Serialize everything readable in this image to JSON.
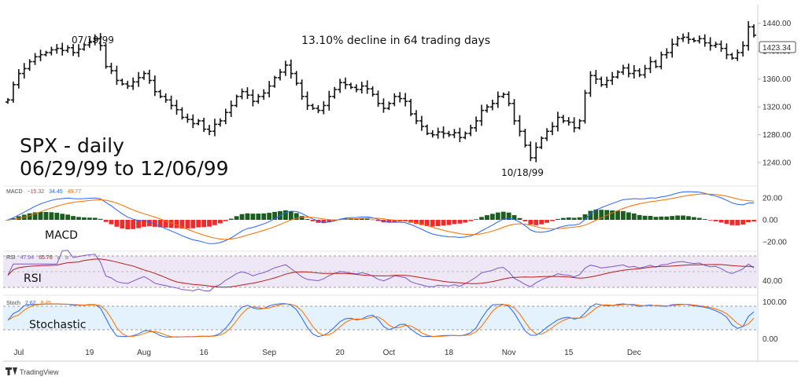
{
  "chart_data": {
    "type": "ohlc",
    "title": "SPX - daily",
    "subtitle": "06/29/99 to 12/06/99",
    "annotation": "13.10% decline in 64 trading days",
    "peak_label": "07/19/99",
    "trough_label": "10/18/99",
    "watermark": "TradingView",
    "price": {
      "ylim": [
        1212,
        1460
      ],
      "ticks": [
        "1440.00",
        "1400.00",
        "1360.00",
        "1320.00",
        "1280.00",
        "1240.00"
      ],
      "last_price": "1423.34",
      "closes": [
        1330,
        1352,
        1368,
        1375,
        1385,
        1392,
        1395,
        1398,
        1402,
        1404,
        1401,
        1405,
        1398,
        1403,
        1409,
        1414,
        1418,
        1408,
        1378,
        1372,
        1358,
        1353,
        1350,
        1356,
        1362,
        1368,
        1358,
        1342,
        1335,
        1330,
        1322,
        1316,
        1305,
        1302,
        1296,
        1300,
        1288,
        1285,
        1295,
        1300,
        1312,
        1322,
        1335,
        1342,
        1337,
        1328,
        1335,
        1340,
        1350,
        1362,
        1370,
        1380,
        1368,
        1354,
        1335,
        1322,
        1318,
        1315,
        1322,
        1335,
        1345,
        1355,
        1352,
        1348,
        1345,
        1350,
        1346,
        1338,
        1325,
        1318,
        1325,
        1335,
        1332,
        1328,
        1310,
        1300,
        1292,
        1282,
        1280,
        1284,
        1282,
        1280,
        1283,
        1276,
        1282,
        1290,
        1300,
        1315,
        1320,
        1325,
        1335,
        1338,
        1325,
        1300,
        1285,
        1265,
        1247,
        1262,
        1275,
        1285,
        1292,
        1305,
        1300,
        1298,
        1290,
        1300,
        1340,
        1365,
        1360,
        1352,
        1358,
        1363,
        1370,
        1376,
        1368,
        1372,
        1366,
        1375,
        1385,
        1378,
        1395,
        1398,
        1410,
        1418,
        1420,
        1417,
        1415,
        1418,
        1412,
        1408,
        1410,
        1404,
        1395,
        1390,
        1398,
        1408,
        1435,
        1423
      ]
    },
    "macd": {
      "label": "MACD",
      "legend": [
        "MACD",
        "−15.32",
        "34.45",
        "49.77"
      ],
      "ylim": [
        -27,
        27
      ],
      "ticks": [
        "20.00",
        "0.00",
        "−20.00"
      ]
    },
    "rsi": {
      "label": "RSI",
      "legend": [
        "RSI",
        "47.94",
        "65.76",
        "ø",
        "ø"
      ],
      "ylim": [
        20,
        90
      ],
      "ticks": [
        "40.00"
      ]
    },
    "stoch": {
      "label": "Stochastic",
      "legend": [
        "Stoch",
        "2.62",
        "8.45"
      ],
      "ylim": [
        -10,
        110
      ],
      "ticks": [
        "100.00",
        "0.00"
      ]
    },
    "x_axis": {
      "labels": [
        {
          "text": "Jul",
          "index": 2
        },
        {
          "text": "19",
          "index": 15
        },
        {
          "text": "Aug",
          "index": 25
        },
        {
          "text": "16",
          "index": 36
        },
        {
          "text": "Sep",
          "index": 48
        },
        {
          "text": "20",
          "index": 61
        },
        {
          "text": "Oct",
          "index": 70
        },
        {
          "text": "18",
          "index": 81
        },
        {
          "text": "Nov",
          "index": 92
        },
        {
          "text": "15",
          "index": 103
        },
        {
          "text": "Dec",
          "index": 115
        }
      ]
    },
    "colors": {
      "bar": "#111111",
      "macd_line": "#2962ff",
      "signal_line": "#ff6d00",
      "hist_pos": "#1b5e20",
      "hist_neg": "#ef2b2b",
      "rsi_line": "#7e57c2",
      "rsi_ma": "#b71c1c",
      "rsi_band": "#ede7f6",
      "stoch_k": "#2962ff",
      "stoch_d": "#ff6d00",
      "stoch_band": "#e3f2fd"
    }
  }
}
